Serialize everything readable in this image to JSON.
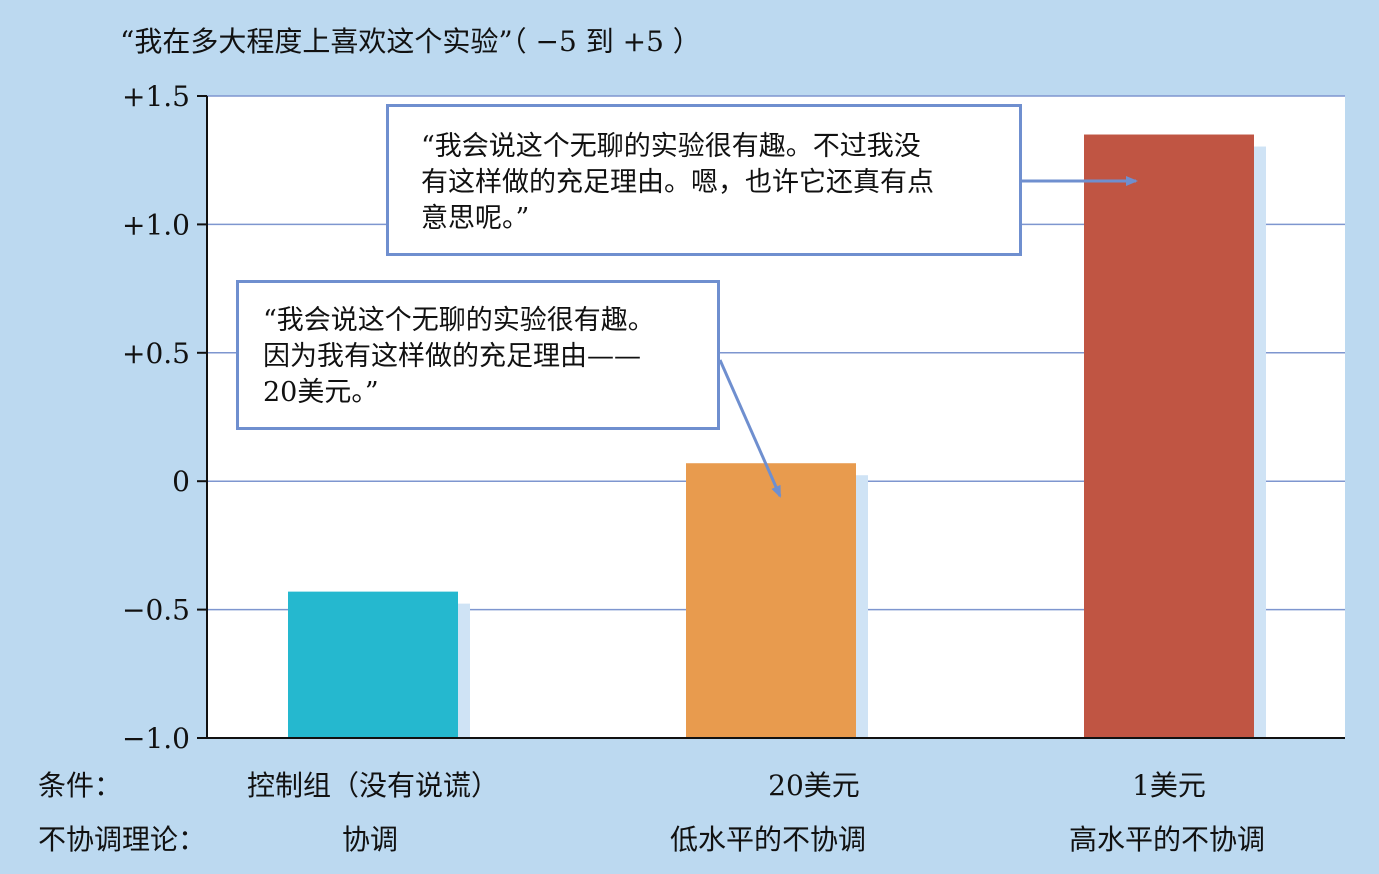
{
  "colors": {
    "background": "#bcd9f0",
    "plot_background": "#ffffff",
    "gridline": "#7e96cf",
    "axis": "#111111",
    "callout_border": "#6f8fcf",
    "bar_shadow": "#cfe3f5"
  },
  "y_axis_title": "“我在多大程度上喜欢这个实验”（ −5 到 +5 ）",
  "row_labels": {
    "condition": "条件：",
    "dissonance": "不协调理论："
  },
  "categories": [
    {
      "condition": "控制组（没有说谎）",
      "dissonance": "协调"
    },
    {
      "condition": "20美元",
      "dissonance": "低水平的不协调"
    },
    {
      "condition": "1美元",
      "dissonance": "高水平的不协调"
    }
  ],
  "callouts": {
    "top": {
      "lines": [
        "“我会说这个无聊的实验很有趣。不过我没",
        "有这样做的充足理由。嗯，也许它还真有点",
        "意思呢。”"
      ]
    },
    "mid": {
      "lines": [
        "“我会说这个无聊的实验很有趣。",
        "因为我有这样做的充足理由——",
        "20美元。”"
      ]
    }
  },
  "chart_data": {
    "type": "bar",
    "categories": [
      "控制组（没有说谎）",
      "20美元",
      "1美元"
    ],
    "values": [
      -0.43,
      0.07,
      1.35
    ],
    "colors": [
      "#25b8cf",
      "#e89b4e",
      "#c05543"
    ],
    "ylim": [
      -1.0,
      1.5
    ],
    "yticks": [
      1.5,
      1.0,
      0.5,
      0,
      -0.5,
      -1.0
    ],
    "ytick_labels": [
      "+1.5",
      "+1.0",
      "+0.5",
      "0",
      "−0.5",
      "−1.0"
    ],
    "title": "",
    "ylabel": "“我在多大程度上喜欢这个实验”（ −5 到 +5 ）",
    "grid": true
  }
}
